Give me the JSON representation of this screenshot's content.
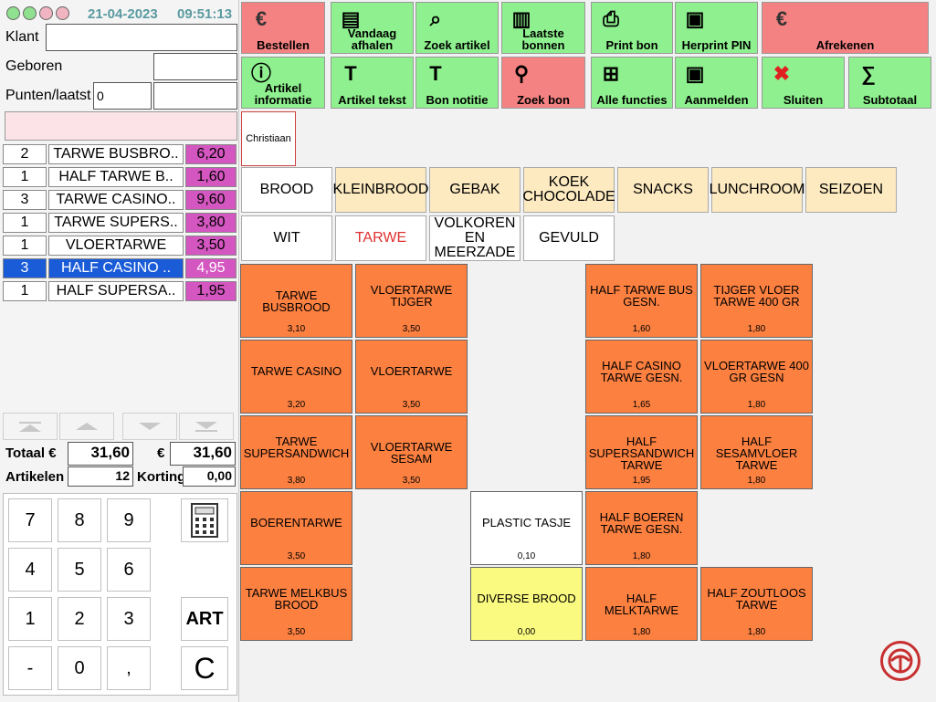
{
  "header": {
    "date": "21-04-2023",
    "time": "09:51:13"
  },
  "customer": {
    "klant_label": "Klant",
    "klant_value": "",
    "geboren_label": "Geboren",
    "geboren_value": "",
    "punten_label": "Punten/laatst",
    "punten_value": "0",
    "laatst_value": ""
  },
  "order_lines": [
    {
      "qty": "2",
      "name": "TARWE BUSBRO..",
      "price": "6,20",
      "selected": false
    },
    {
      "qty": "1",
      "name": "HALF TARWE B..",
      "price": "1,60",
      "selected": false
    },
    {
      "qty": "3",
      "name": "TARWE CASINO..",
      "price": "9,60",
      "selected": false
    },
    {
      "qty": "1",
      "name": "TARWE SUPERS..",
      "price": "3,80",
      "selected": false
    },
    {
      "qty": "1",
      "name": "VLOERTARWE",
      "price": "3,50",
      "selected": false
    },
    {
      "qty": "3",
      "name": "HALF CASINO ..",
      "price": "4,95",
      "selected": true
    },
    {
      "qty": "1",
      "name": "HALF SUPERSA..",
      "price": "1,95",
      "selected": false
    }
  ],
  "totals": {
    "totaal_label": "Totaal",
    "currency": "€",
    "totaal_value": "31,60",
    "totaal_value2": "31,60",
    "artikelen_label": "Artikelen",
    "artikelen_value": "12",
    "korting_label": "Korting",
    "korting_value": "0,00"
  },
  "keypad": {
    "keys": [
      "7",
      "8",
      "9",
      "4",
      "5",
      "6",
      "1",
      "2",
      "3",
      "-",
      "0",
      ","
    ],
    "art": "ART",
    "clear": "C",
    "calculator_icon": "calculator-icon"
  },
  "toolbar": {
    "row1": [
      {
        "label": "Bestellen",
        "color": "#f58282",
        "icon": "euro-icon"
      },
      {
        "label": "Vandaag afhalen",
        "color": "#8ef08e",
        "icon": "documents-icon"
      },
      {
        "label": "Zoek artikel",
        "color": "#8ef08e",
        "icon": "search-article-icon"
      },
      {
        "label": "Laatste bonnen",
        "color": "#8ef08e",
        "icon": "receipts-icon"
      },
      {
        "label": "Print bon",
        "color": "#8ef08e",
        "icon": "print-icon"
      },
      {
        "label": "Herprint PIN",
        "color": "#8ef08e",
        "icon": "pin-terminal-icon"
      },
      {
        "label": "Afrekenen",
        "color": "#f58282",
        "icon": "euro-icon"
      }
    ],
    "row2": [
      {
        "label": "Artikel informatie",
        "color": "#8ef08e",
        "icon": "info-icon"
      },
      {
        "label": "Artikel tekst",
        "color": "#8ef08e",
        "icon": "text-icon"
      },
      {
        "label": "Bon notitie",
        "color": "#8ef08e",
        "icon": "note-icon"
      },
      {
        "label": "Zoek bon",
        "color": "#f58282",
        "icon": "magnifier-icon"
      },
      {
        "label": "Alle functies",
        "color": "#8ef08e",
        "icon": "tree-icon"
      },
      {
        "label": "Aanmelden",
        "color": "#8ef08e",
        "icon": "login-icon"
      },
      {
        "label": "Sluiten",
        "color": "#8ef08e",
        "icon": "close-icon"
      },
      {
        "label": "Subtotaal",
        "color": "#8ef08e",
        "icon": "subtotal-icon"
      }
    ]
  },
  "user": {
    "name": "Christiaan"
  },
  "categories": [
    "BROOD",
    "KLEINBROOD",
    "GEBAK",
    "KOEK CHOCOLADE",
    "SNACKS",
    "LUNCHROOM",
    "SEIZOEN"
  ],
  "subcategories": [
    "WIT",
    "TARWE",
    "VOLKOREN EN MEERZADE",
    "GEVULD"
  ],
  "products": [
    {
      "name": "TARWE BUSBROOD",
      "price": "3,10",
      "col": 0,
      "row": 0,
      "style": "orange"
    },
    {
      "name": "VLOERTARWE TIJGER",
      "price": "3,50",
      "col": 1,
      "row": 0,
      "style": "orange"
    },
    {
      "name": "HALF TARWE BUS GESN.",
      "price": "1,60",
      "col": 3,
      "row": 0,
      "style": "orange"
    },
    {
      "name": "TIJGER VLOER TARWE 400 GR",
      "price": "1,80",
      "col": 4,
      "row": 0,
      "style": "orange"
    },
    {
      "name": "TARWE CASINO",
      "price": "3,20",
      "col": 0,
      "row": 1,
      "style": "orange"
    },
    {
      "name": "VLOERTARWE",
      "price": "3,50",
      "col": 1,
      "row": 1,
      "style": "orange"
    },
    {
      "name": "HALF CASINO TARWE GESN.",
      "price": "1,65",
      "col": 3,
      "row": 1,
      "style": "orange"
    },
    {
      "name": "VLOERTARWE 400 GR GESN",
      "price": "1,80",
      "col": 4,
      "row": 1,
      "style": "orange"
    },
    {
      "name": "TARWE SUPERSANDWICH",
      "price": "3,80",
      "col": 0,
      "row": 2,
      "style": "orange"
    },
    {
      "name": "VLOERTARWE SESAM",
      "price": "3,50",
      "col": 1,
      "row": 2,
      "style": "orange"
    },
    {
      "name": "HALF SUPERSANDWICH TARWE",
      "price": "1,95",
      "col": 3,
      "row": 2,
      "style": "orange"
    },
    {
      "name": "HALF SESAMVLOER TARWE",
      "price": "1,80",
      "col": 4,
      "row": 2,
      "style": "orange"
    },
    {
      "name": "BOERENTARWE",
      "price": "3,50",
      "col": 0,
      "row": 3,
      "style": "orange"
    },
    {
      "name": "PLASTIC TASJE",
      "price": "0,10",
      "col": 2,
      "row": 3,
      "style": "white"
    },
    {
      "name": "HALF BOEREN TARWE GESN.",
      "price": "1,80",
      "col": 3,
      "row": 3,
      "style": "orange"
    },
    {
      "name": "TARWE MELKBUS BROOD",
      "price": "3,50",
      "col": 0,
      "row": 4,
      "style": "orange"
    },
    {
      "name": "DIVERSE BROOD",
      "price": "0,00",
      "col": 2,
      "row": 4,
      "style": "yellow"
    },
    {
      "name": "HALF MELKTARWE",
      "price": "1,80",
      "col": 3,
      "row": 4,
      "style": "orange"
    },
    {
      "name": "HALF ZOUTLOOS TARWE",
      "price": "1,80",
      "col": 4,
      "row": 4,
      "style": "orange"
    }
  ]
}
